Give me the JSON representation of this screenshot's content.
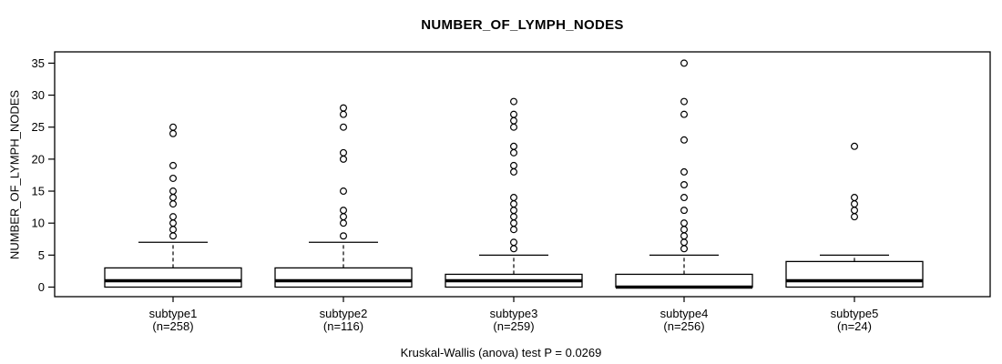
{
  "chart_data": {
    "type": "boxplot",
    "title": "NUMBER_OF_LYMPH_NODES",
    "ylabel": "NUMBER_OF_LYMPH_NODES",
    "caption": "Kruskal-Wallis (anova) test P = 0.0269",
    "ylim": [
      0,
      35
    ],
    "yticks": [
      0,
      5,
      10,
      15,
      20,
      25,
      30,
      35
    ],
    "grid": false,
    "legend": "none",
    "orientation": "vertical",
    "colors": {
      "stroke": "#000000",
      "box_fill": "#ffffff",
      "background": "#ffffff"
    },
    "categories": [
      "subtype1",
      "subtype2",
      "subtype3",
      "subtype4",
      "subtype5"
    ],
    "sample_size_labels": [
      "(n=258)",
      "(n=116)",
      "(n=259)",
      "(n=256)",
      "(n=24)"
    ],
    "series": [
      {
        "name": "subtype1",
        "n_label": "(n=258)",
        "whisker_low": 0,
        "q1": 0,
        "median": 1,
        "q3": 3,
        "whisker_high": 7,
        "outliers": [
          8,
          9,
          10,
          11,
          13,
          14,
          15,
          17,
          19,
          24,
          25
        ]
      },
      {
        "name": "subtype2",
        "n_label": "(n=116)",
        "whisker_low": 0,
        "q1": 0,
        "median": 1,
        "q3": 3,
        "whisker_high": 7,
        "outliers": [
          8,
          10,
          11,
          12,
          15,
          20,
          21,
          25,
          27,
          28
        ]
      },
      {
        "name": "subtype3",
        "n_label": "(n=259)",
        "whisker_low": 0,
        "q1": 0,
        "median": 1,
        "q3": 2,
        "whisker_high": 5,
        "outliers": [
          6,
          7,
          9,
          10,
          11,
          12,
          13,
          14,
          18,
          19,
          21,
          22,
          25,
          26,
          27,
          29
        ]
      },
      {
        "name": "subtype4",
        "n_label": "(n=256)",
        "whisker_low": 0,
        "q1": 0,
        "median": 0,
        "q3": 2,
        "whisker_high": 5,
        "outliers": [
          6,
          7,
          8,
          9,
          10,
          12,
          14,
          16,
          18,
          23,
          27,
          29,
          35
        ]
      },
      {
        "name": "subtype5",
        "n_label": "(n=24)",
        "whisker_low": 0,
        "q1": 0,
        "median": 1,
        "q3": 4,
        "whisker_high": 5,
        "outliers": [
          11,
          12,
          13,
          14,
          22
        ]
      }
    ]
  }
}
